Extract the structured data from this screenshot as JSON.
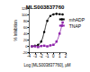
{
  "chart_data": {
    "type": "line",
    "title": "MLS003837760",
    "x_label": "Log [MLS003837760], µM",
    "y_label": "% Inhibition",
    "x": [
      -3.5,
      -3,
      -2.5,
      -2,
      -1.5,
      -1,
      -0.5,
      0,
      0.5,
      1,
      1.5
    ],
    "series": [
      {
        "name": "mhADP",
        "color": "#000000",
        "marker": "circle",
        "line_style": "solid",
        "values": [
          0,
          2,
          5,
          15,
          45,
          80,
          95,
          100,
          102,
          101,
          100
        ]
      },
      {
        "name": "TNAP",
        "color": "#8e24aa",
        "marker": "rect",
        "line_style": "solid",
        "values": [
          0,
          0,
          -2,
          1,
          2,
          0,
          3,
          5,
          15,
          40,
          75
        ]
      }
    ],
    "xlim": [
      -4,
      2
    ],
    "xticks": [
      -4,
      -3,
      -2,
      -1,
      0,
      1,
      2
    ],
    "ylim": [
      -20,
      120
    ],
    "yticks": [
      -20,
      0,
      20,
      40,
      60,
      80,
      100,
      120
    ],
    "grid": false,
    "legend": "right"
  }
}
